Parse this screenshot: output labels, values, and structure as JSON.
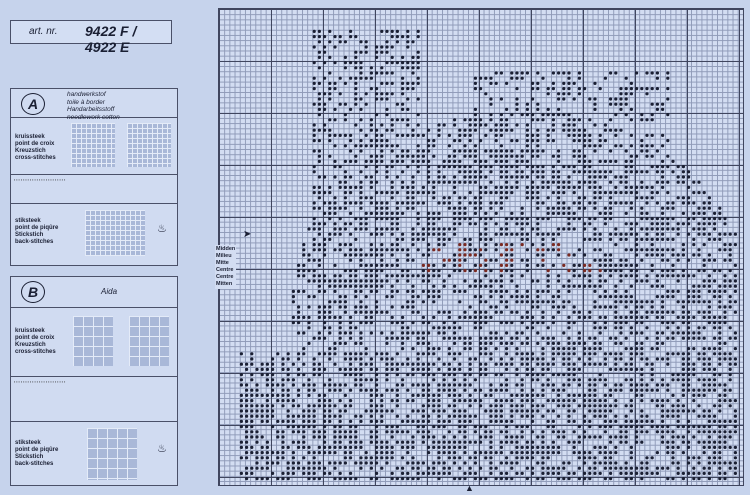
{
  "header": {
    "art_label": "art. nr.",
    "art_number": "9422 F / 4922 E"
  },
  "panel_a": {
    "letter": "A",
    "fabric": [
      "handwerkstof",
      "toile à border",
      "Handarbeitsstoff",
      "needlework cotton"
    ],
    "cross_stitch": [
      "kruissteek",
      "point de croix",
      "Kreuzstich",
      "cross-stitches"
    ],
    "back_stitch": [
      "stiksteek",
      "point de piqûre",
      "Stickstich",
      "back-stitches"
    ]
  },
  "panel_b": {
    "letter": "B",
    "fabric": "Aida",
    "cross_stitch": [
      "kruissteek",
      "point de croix",
      "Kreuzstich",
      "cross-stitches"
    ],
    "back_stitch": [
      "stiksteek",
      "point de piqûre",
      "Stickstich",
      "back-stitches"
    ]
  },
  "chart": {
    "center_labels": [
      "Midden",
      "Milieu",
      "Mitte",
      "Centre",
      "Centre",
      "Mitten"
    ]
  },
  "colors": {
    "paper": "#c6d3ec",
    "grid": "#40465f",
    "symbol": "#1a1f33",
    "red_symbol": "#7a2a22"
  }
}
